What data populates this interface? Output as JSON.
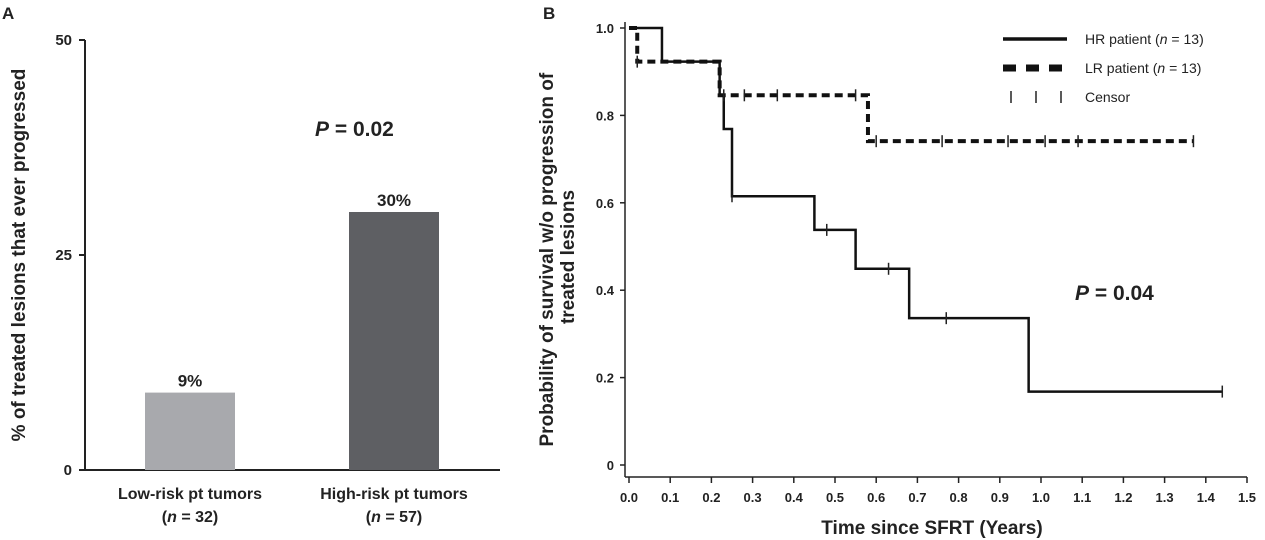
{
  "chart_data": [
    {
      "panel": "A",
      "type": "bar",
      "ylabel": "% of treated lesions that ever progressed",
      "ylim": [
        0,
        50
      ],
      "yticks": [
        "0",
        "25",
        "50"
      ],
      "categories": [
        {
          "label": "Low-risk pt tumors",
          "n_pre": "(",
          "n_var": "n",
          "n_post": " = 32)"
        },
        {
          "label": "High-risk pt tumors",
          "n_pre": "(",
          "n_var": "n",
          "n_post": " = 57)"
        }
      ],
      "values": [
        9,
        30
      ],
      "value_labels": [
        "9%",
        "30%"
      ],
      "colors": [
        "#a8a9ad",
        "#5e5f63"
      ],
      "annotation": {
        "var": "P",
        "rest": " = 0.02"
      },
      "grid": false
    },
    {
      "panel": "B",
      "type": "line",
      "step": true,
      "xlabel": "Time since SFRT (Years)",
      "ylabel_lines": [
        "Probability of survival w/o progression of",
        "treated lesions"
      ],
      "xlim": [
        0,
        1.5
      ],
      "ylim": [
        0,
        1.0
      ],
      "xticks": [
        "0.0",
        "0.1",
        "0.2",
        "0.3",
        "0.4",
        "0.5",
        "0.6",
        "0.7",
        "0.8",
        "0.9",
        "1.0",
        "1.1",
        "1.2",
        "1.3",
        "1.4",
        "1.5"
      ],
      "yticks": [
        "0",
        "0.2",
        "0.4",
        "0.6",
        "0.8",
        "1.0"
      ],
      "series": [
        {
          "name": "HR patient",
          "n_text": "13",
          "style": "solid",
          "x": [
            0,
            0.08,
            0.22,
            0.23,
            0.25,
            0.45,
            0.55,
            0.68,
            0.97,
            1.44
          ],
          "y": [
            1.0,
            0.923,
            0.846,
            0.769,
            0.615,
            0.538,
            0.449,
            0.336,
            0.168,
            0.168
          ],
          "censor_x": [
            0.25,
            0.48,
            0.63,
            0.77,
            1.44
          ]
        },
        {
          "name": "LR patient",
          "n_text": "13",
          "style": "dashed",
          "x": [
            0,
            0.02,
            0.22,
            0.58,
            1.37
          ],
          "y": [
            1.0,
            0.923,
            0.846,
            0.741,
            0.741
          ],
          "censor_x": [
            0.02,
            0.23,
            0.28,
            0.36,
            0.55,
            0.6,
            0.76,
            0.92,
            1.01,
            1.09,
            1.37
          ]
        }
      ],
      "legend": {
        "position": "top-right",
        "censor_label": "Censor"
      },
      "annotation": {
        "var": "P",
        "rest": " = 0.04"
      },
      "grid": false
    }
  ]
}
